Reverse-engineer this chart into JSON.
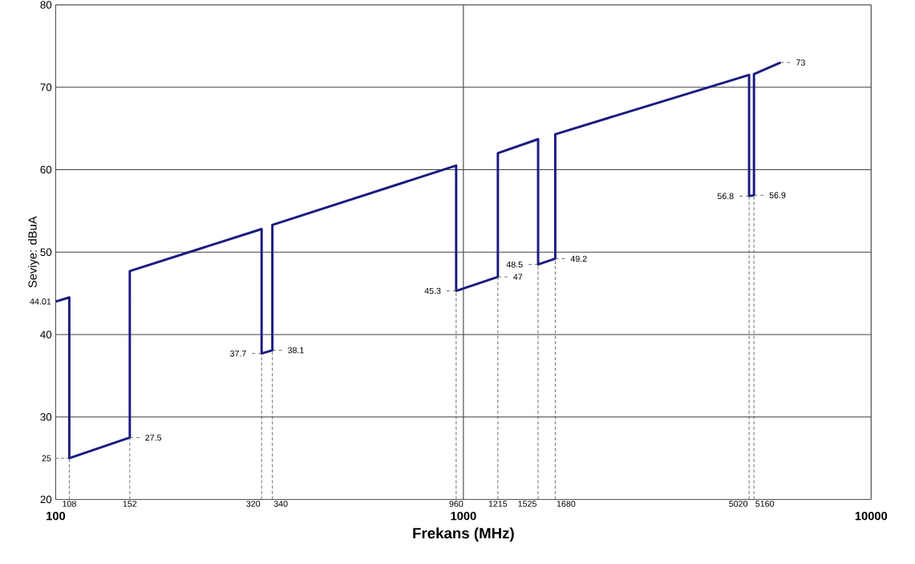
{
  "chart_data": {
    "type": "line",
    "xlabel": "Frekans (MHz)",
    "ylabel": "Seviye: dBuA",
    "x": [
      100,
      108,
      108,
      152,
      152,
      320,
      320,
      340,
      340,
      960,
      960,
      1215,
      1215,
      1525,
      1525,
      1680,
      1680,
      5020,
      5020,
      5160,
      5160,
      6000
    ],
    "series": [
      {
        "color": "#1a1a80",
        "values": [
          44.01,
          44.5,
          25,
          27.5,
          47.7,
          52.8,
          37.7,
          38.1,
          53.3,
          60.5,
          45.3,
          47,
          62,
          63.7,
          48.5,
          49.2,
          64.3,
          71.5,
          56.8,
          56.9,
          71.6,
          73
        ]
      }
    ],
    "log": "x",
    "xlim": [
      100,
      10000
    ],
    "xticks": [
      100,
      1000,
      10000
    ],
    "ylim": [
      20,
      80
    ],
    "yticks": [
      20,
      30,
      40,
      50,
      60,
      70,
      80
    ],
    "grid": true,
    "marker": "none",
    "line_style": "solid",
    "annotations": [
      {
        "text": "44.01",
        "x": 100,
        "y": 44.01
      },
      {
        "text": "27.5",
        "x": 152,
        "y": 27.5
      },
      {
        "text": "37.7",
        "x": 320,
        "y": 37.7
      },
      {
        "text": "38.1",
        "x": 340,
        "y": 38.1
      },
      {
        "text": "45.3",
        "x": 960,
        "y": 45.3
      },
      {
        "text": "47",
        "x": 1215,
        "y": 47
      },
      {
        "text": "48.5",
        "x": 1525,
        "y": 48.5
      },
      {
        "text": "49.2",
        "x": 1680,
        "y": 49.2
      },
      {
        "text": "56.8",
        "x": 5020,
        "y": 56.8
      },
      {
        "text": "56.9",
        "x": 5160,
        "y": 56.9
      },
      {
        "text": "73",
        "x": 6000,
        "y": 73
      }
    ],
    "ref_lines": [
      {
        "axis": "y",
        "value": 25,
        "label": "25",
        "line_style": "dashed"
      },
      {
        "axis": "x",
        "value": 108,
        "label": "108",
        "line_style": "dashed"
      },
      {
        "axis": "x",
        "value": 152,
        "label": "152",
        "line_style": "dashed"
      },
      {
        "axis": "x",
        "value": 320,
        "label": "320",
        "line_style": "dashed"
      },
      {
        "axis": "x",
        "value": 340,
        "label": "340",
        "line_style": "dashed"
      },
      {
        "axis": "x",
        "value": 960,
        "label": "960",
        "line_style": "dashed"
      },
      {
        "axis": "x",
        "value": 1215,
        "label": "1215",
        "line_style": "dashed"
      },
      {
        "axis": "x",
        "value": 1525,
        "label": "1525",
        "line_style": "dashed"
      },
      {
        "axis": "x",
        "value": 1680,
        "label": "1680",
        "line_style": "dashed"
      },
      {
        "axis": "x",
        "value": 5020,
        "label": "5020",
        "line_style": "dashed"
      },
      {
        "axis": "x",
        "value": 5160,
        "label": "5160",
        "line_style": "dashed"
      }
    ]
  }
}
